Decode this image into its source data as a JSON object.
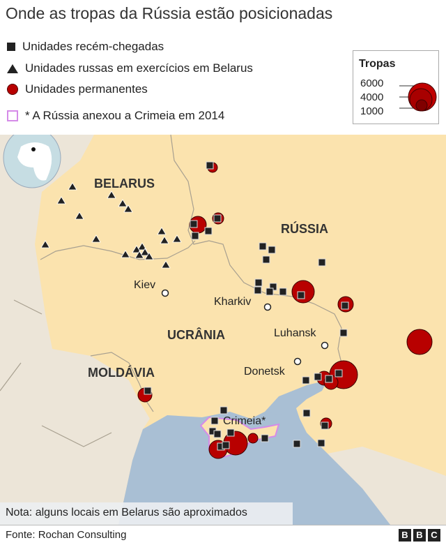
{
  "title": "Onde as tropas da Rússia estão posicionadas",
  "legend": {
    "new_units": "Unidades recém-chegadas",
    "exercise_units": "Unidades russas em exercícios em Belarus",
    "permanent_units": "Unidades permanentes",
    "crimea_note": "* A Rússia anexou a Crimeia em 2014"
  },
  "size_legend": {
    "title": "Tropas",
    "values": [
      "6000",
      "4000",
      "1000"
    ]
  },
  "map": {
    "countries": {
      "belarus": "BELARUS",
      "russia": "RÚSSIA",
      "ukraine": "UCRÂNIA",
      "moldova": "MOLDÁVIA"
    },
    "cities": {
      "kiev": "Kiev",
      "kharkiv": "Kharkiv",
      "luhansk": "Luhansk",
      "donetsk": "Donetsk",
      "crimea": "Crimeia*"
    },
    "colors": {
      "land": "#fbe3ae",
      "other_land": "#ece5d8",
      "sea": "#a9bfd4",
      "unit_red": "#b80000",
      "crimea_outline": "#d58be8"
    }
  },
  "note": "Nota: alguns locais em Belarus são aproximados",
  "source": "Fonte: Rochan Consulting",
  "brand": [
    "B",
    "B",
    "C"
  ]
}
